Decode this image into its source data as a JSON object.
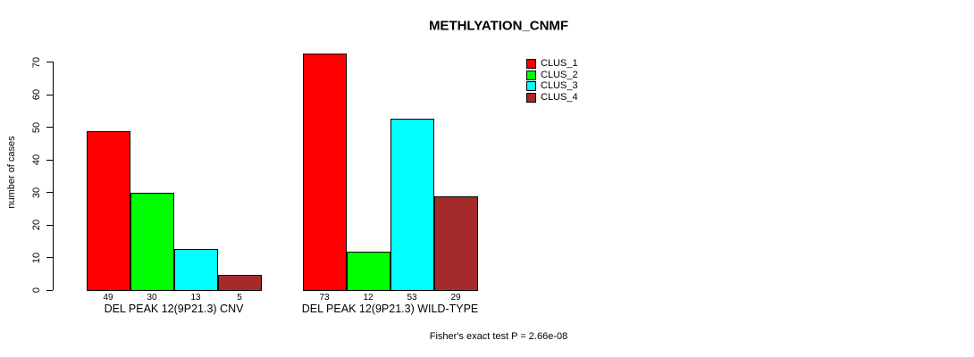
{
  "page": {
    "background": "#FFFFFF"
  },
  "chart_data": {
    "type": "bar",
    "title": "METHLYATION_CNMF",
    "ylabel": "number of cases",
    "xlabel": "",
    "ylim": [
      0,
      70
    ],
    "yticks": [
      0,
      10,
      20,
      30,
      40,
      50,
      60,
      70
    ],
    "grid": false,
    "legend_position": "top-right",
    "categories": [
      "DEL PEAK 12(9P21.3) CNV",
      "DEL PEAK 12(9P21.3) WILD-TYPE"
    ],
    "series": [
      {
        "name": "CLUS_1",
        "color": "#FF0000",
        "values": [
          49,
          73
        ]
      },
      {
        "name": "CLUS_2",
        "color": "#00FF00",
        "values": [
          30,
          12
        ]
      },
      {
        "name": "CLUS_3",
        "color": "#00FFFF",
        "values": [
          13,
          53
        ]
      },
      {
        "name": "CLUS_4",
        "color": "#A52A2A",
        "values": [
          5,
          29
        ]
      }
    ],
    "value_labels": true,
    "annotation": "Fisher's exact test P = 2.66e-08"
  }
}
